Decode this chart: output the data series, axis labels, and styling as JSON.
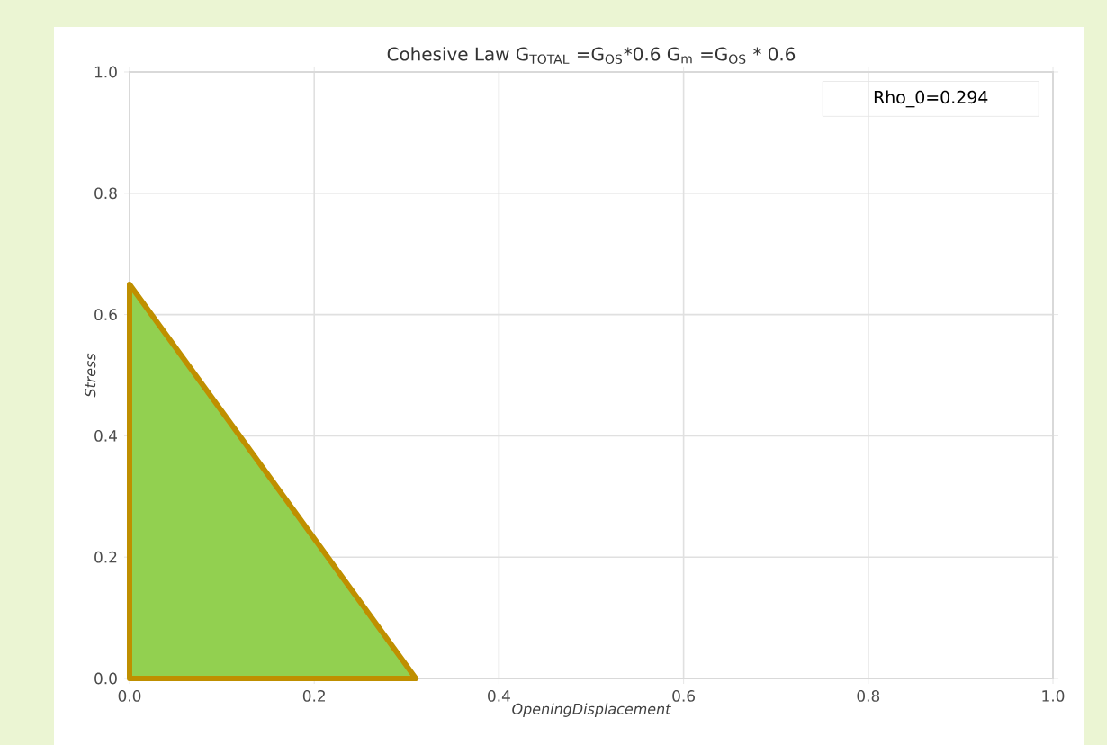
{
  "chart_data": {
    "type": "area",
    "title": "Cohesive Law    G$_{TOTAL}$ =G$_{OS}$*0.6    G$_{m}$ =G$_{OS}$ * 0.6",
    "xlabel": "OpeningDisplacement",
    "ylabel": "Stress",
    "x": [
      0,
      0.31
    ],
    "series": [
      {
        "values": [
          0.65,
          0
        ],
        "color": "#92d050"
      }
    ],
    "annotations": [
      "Rho_0=0.294"
    ],
    "xlim": [
      0,
      1
    ],
    "ylim": [
      0,
      1
    ],
    "xticks": [
      {
        "value": 0,
        "label": "0.0"
      },
      0.2,
      0.4,
      0.6,
      0.8,
      {
        "value": 1,
        "label": "1.0"
      }
    ],
    "yticks": [
      {
        "value": 0,
        "label": "0.0"
      },
      0.2,
      0.4,
      0.6,
      0.8,
      {
        "value": 1,
        "label": "1.0"
      }
    ],
    "grid": true
  }
}
